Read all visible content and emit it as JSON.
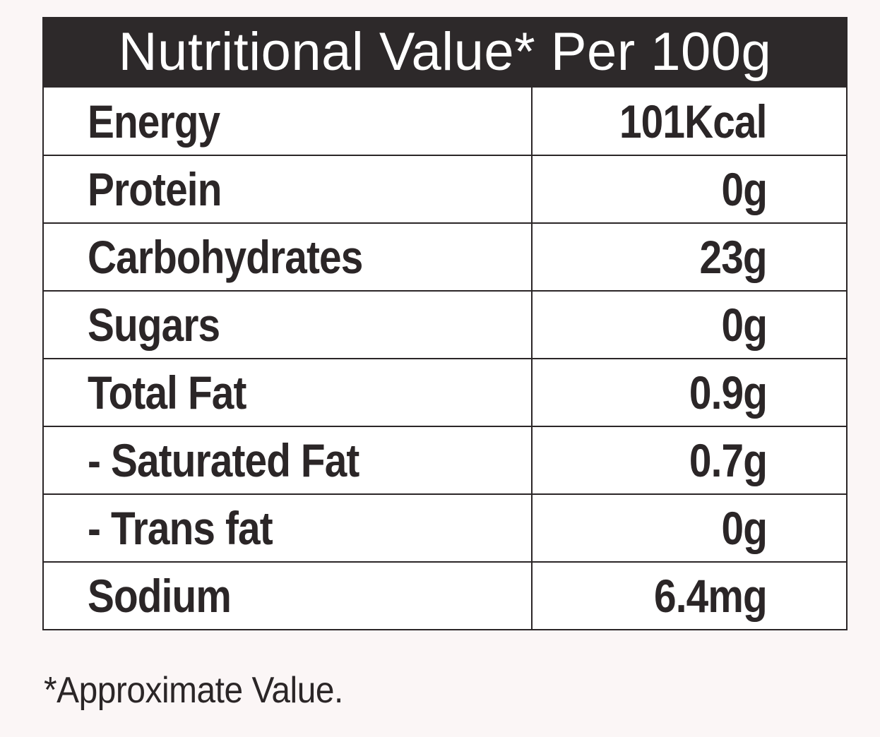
{
  "title": "Nutritional Value* Per 100g",
  "rows": [
    {
      "label": "Energy",
      "value": "101Kcal"
    },
    {
      "label": "Protein",
      "value": "0g"
    },
    {
      "label": "Carbohydrates",
      "value": "23g"
    },
    {
      "label": "Sugars",
      "value": "0g"
    },
    {
      "label": "Total Fat",
      "value": "0.9g"
    },
    {
      "label": "- Saturated Fat",
      "value": "0.7g"
    },
    {
      "label": "- Trans fat",
      "value": "0g"
    },
    {
      "label": "Sodium",
      "value": "6.4mg"
    }
  ],
  "footnote": "*Approximate Value.",
  "colors": {
    "header_bg": "#2d292a",
    "header_text": "#ffffff",
    "text": "#2b2627",
    "background": "#fbf6f6"
  }
}
